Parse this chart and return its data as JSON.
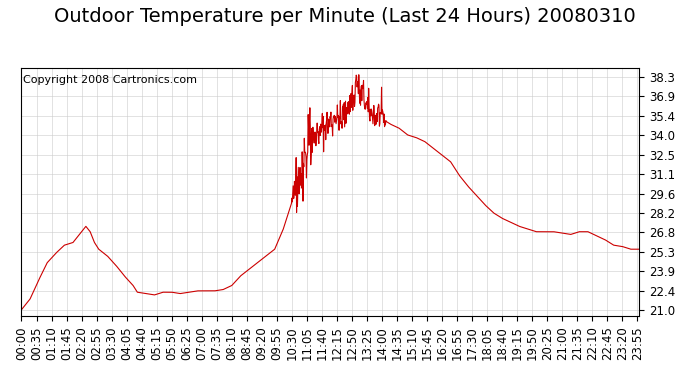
{
  "title": "Outdoor Temperature per Minute (Last 24 Hours) 20080310",
  "copyright": "Copyright 2008 Cartronics.com",
  "line_color": "#cc0000",
  "bg_color": "#ffffff",
  "plot_bg_color": "#ffffff",
  "grid_color": "#cccccc",
  "yticks": [
    21.0,
    22.4,
    23.9,
    25.3,
    26.8,
    28.2,
    29.6,
    31.1,
    32.5,
    34.0,
    35.4,
    36.9,
    38.3
  ],
  "ylim": [
    20.5,
    39.0
  ],
  "title_fontsize": 14,
  "tick_fontsize": 8.5,
  "copyright_fontsize": 8
}
